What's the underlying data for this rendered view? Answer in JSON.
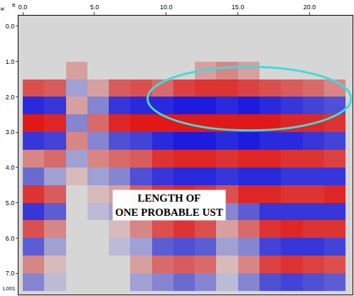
{
  "chart_data": {
    "type": "heatmap",
    "x_label": "ft",
    "y_label": "ft",
    "annotation_lines": [
      "LENGTH OF",
      "ONE PROBABLE UST"
    ],
    "line_label": "L001",
    "xlim": [
      -0.3,
      23
    ],
    "ylim": [
      7.6,
      -0.3
    ],
    "xticks": [
      {
        "value": 0,
        "label": "0.0"
      },
      {
        "value": 5,
        "label": "5.0"
      },
      {
        "value": 10,
        "label": "10.0"
      },
      {
        "value": 15,
        "label": "15.0"
      },
      {
        "value": 20,
        "label": "20.0"
      }
    ],
    "yticks": [
      {
        "value": 0,
        "label": "0.0"
      },
      {
        "value": 1,
        "label": "1.0"
      },
      {
        "value": 2,
        "label": "2.0"
      },
      {
        "value": 3,
        "label": "3.0"
      },
      {
        "value": 4,
        "label": "4.0"
      },
      {
        "value": 5,
        "label": "5.0"
      },
      {
        "value": 6,
        "label": "6.0"
      },
      {
        "value": 7,
        "label": "7.0"
      }
    ],
    "grid": false,
    "tick_labels": true,
    "x": [
      0.75,
      2.25,
      3.75,
      5.25,
      6.75,
      8.25,
      9.75,
      11.25,
      12.75,
      14.25,
      15.75,
      17.25,
      18.75,
      20.25,
      21.75
    ],
    "y": [
      0.25,
      0.75,
      1.25,
      1.75,
      2.25,
      2.75,
      3.25,
      3.75,
      4.25,
      4.75,
      5.25,
      5.75,
      6.25,
      6.75,
      7.25
    ],
    "z": [
      [
        0,
        0,
        0,
        0,
        0,
        0,
        0,
        0,
        0,
        0,
        0,
        0,
        0,
        0,
        0
      ],
      [
        0,
        0,
        0,
        0,
        0,
        0,
        0,
        0,
        0,
        0,
        0,
        0,
        0,
        0,
        0
      ],
      [
        0,
        0,
        0.2,
        0,
        0,
        0,
        0,
        0,
        0.2,
        0.3,
        0.2,
        0,
        0,
        0,
        0
      ],
      [
        0.6,
        0.5,
        -0.2,
        0.2,
        0.5,
        0.6,
        0.4,
        0.7,
        0.8,
        0.8,
        0.7,
        0.6,
        0.5,
        0.4,
        0.3
      ],
      [
        -0.9,
        -0.8,
        0.2,
        -0.3,
        -0.8,
        -0.9,
        -0.9,
        -1,
        -1,
        -0.9,
        -1,
        -0.9,
        -0.8,
        -0.7,
        -0.6
      ],
      [
        1,
        0.9,
        -0.3,
        0.4,
        0.9,
        1,
        1,
        1,
        1,
        1,
        1,
        1,
        0.9,
        0.9,
        0.8
      ],
      [
        -0.8,
        -0.7,
        0.3,
        -0.3,
        -0.6,
        -0.7,
        -0.9,
        -1,
        -1,
        -0.9,
        -1,
        -0.9,
        -0.9,
        -0.8,
        -0.7
      ],
      [
        0.3,
        0.4,
        -0.2,
        0.3,
        0.4,
        0.5,
        0.8,
        0.9,
        0.9,
        0.8,
        0.9,
        0.9,
        0.8,
        0.8,
        0.7
      ],
      [
        -0.4,
        -0.2,
        0.1,
        -0.2,
        -0.3,
        -0.6,
        -0.8,
        -0.9,
        -0.9,
        -0.8,
        -0.9,
        -0.9,
        -0.8,
        -0.8,
        -0.8
      ],
      [
        0.8,
        0.5,
        0,
        0.1,
        0.2,
        0.5,
        0.8,
        0.9,
        0.8,
        0.6,
        0.9,
        0.9,
        0.8,
        0.8,
        0.9
      ],
      [
        -0.8,
        -0.5,
        0,
        -0.1,
        -0.2,
        -0.4,
        -0.7,
        -0.8,
        -0.7,
        -0.3,
        -0.5,
        -0.8,
        -0.8,
        -0.8,
        -0.8
      ],
      [
        0.6,
        0.3,
        0,
        0,
        0.1,
        0.3,
        0.6,
        0.8,
        0.6,
        0.2,
        0.4,
        0.8,
        0.9,
        0.8,
        0.8
      ],
      [
        -0.5,
        -0.2,
        0,
        0,
        -0.1,
        -0.2,
        -0.5,
        -0.6,
        -0.5,
        -0.2,
        -0.3,
        -0.7,
        -0.8,
        -0.8,
        -0.7
      ],
      [
        0.3,
        0.1,
        0,
        0,
        0,
        0.2,
        0.4,
        0.5,
        0.4,
        0.1,
        0.3,
        0.7,
        0.8,
        0.7,
        0.6
      ],
      [
        -0.3,
        -0.1,
        0,
        0,
        0,
        -0.2,
        -0.3,
        -0.4,
        -0.3,
        -0.1,
        -0.3,
        -0.6,
        -0.7,
        -0.6,
        -0.5
      ]
    ],
    "zlim": [
      -1,
      1
    ],
    "highlight": {
      "x": [
        8.7,
        22.9
      ],
      "y": [
        1.15,
        2.95
      ],
      "color": "#3fdcdc"
    }
  }
}
